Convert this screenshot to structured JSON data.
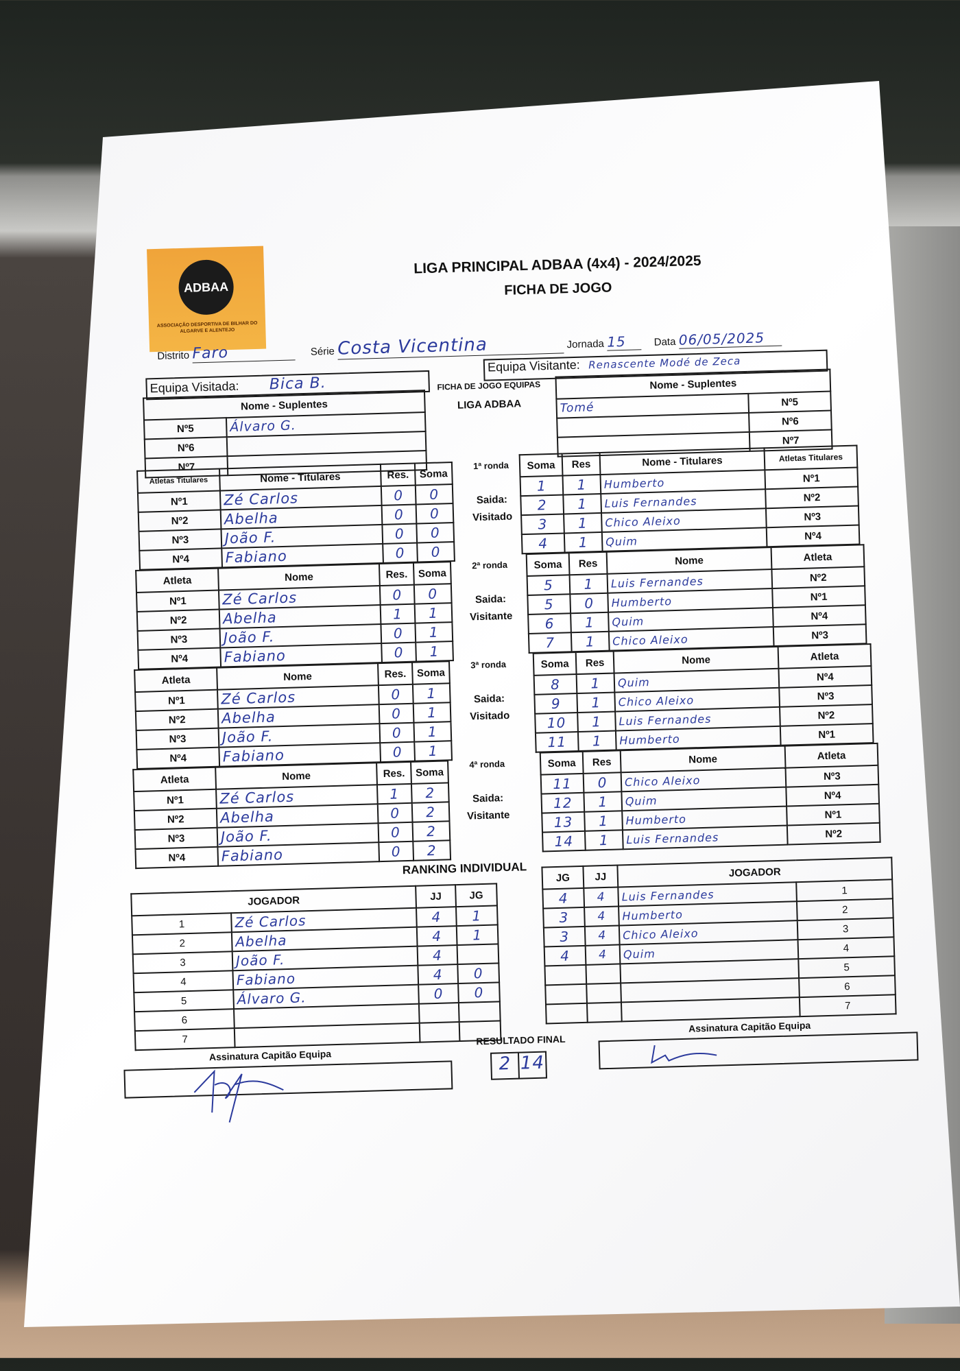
{
  "header": {
    "logo_text": "ADBAA",
    "logo_subtext": "ASSOCIAÇÃO DESPORTIVA DE BILHAR DO ALGARVE E ALENTEJO",
    "title": "LIGA PRINCIPAL ADBAA (4x4) - 2024/2025",
    "subtitle": "FICHA DE JOGO"
  },
  "fields": {
    "distrito_label": "Distrito",
    "distrito": "Faro",
    "serie_label": "Série",
    "serie": "Costa Vicentina",
    "jornada_label": "Jornada",
    "jornada": "15",
    "data_label": "Data",
    "data": "06/05/2025"
  },
  "teams": {
    "visitada_label": "Equipa Visitada:",
    "visitada": "Bica B.",
    "visitante_label": "Equipa Visitante:",
    "visitante": "Renascente Modé de Zeca",
    "center_line1": "FICHA DE JOGO EQUIPAS",
    "center_line2": "LIGA ADBAA"
  },
  "suplentes": {
    "header": "Nome - Suplentes",
    "home": [
      {
        "n": "Nº5",
        "name": "Álvaro G."
      },
      {
        "n": "Nº6",
        "name": ""
      },
      {
        "n": "Nº7",
        "name": ""
      }
    ],
    "away": [
      {
        "n": "Nº5",
        "name": "Tomé"
      },
      {
        "n": "Nº6",
        "name": ""
      },
      {
        "n": "Nº7",
        "name": ""
      }
    ]
  },
  "rounds": [
    {
      "label": "1ª ronda",
      "saida": "Saida:",
      "saida_team": "Visitado",
      "home_headers": [
        "Atletas Titulares",
        "Nome - Titulares",
        "Res.",
        "Soma"
      ],
      "away_headers": [
        "Soma",
        "Res",
        "Nome - Titulares",
        "Atletas Titulares"
      ],
      "home": [
        {
          "n": "Nº1",
          "name": "Zé Carlos",
          "res": "0",
          "soma": "0"
        },
        {
          "n": "Nº2",
          "name": "Abelha",
          "res": "0",
          "soma": "0"
        },
        {
          "n": "Nº3",
          "name": "João F.",
          "res": "0",
          "soma": "0"
        },
        {
          "n": "Nº4",
          "name": "Fabiano",
          "res": "0",
          "soma": "0"
        }
      ],
      "away": [
        {
          "soma": "1",
          "res": "1",
          "name": "Humberto",
          "n": "Nº1"
        },
        {
          "soma": "2",
          "res": "1",
          "name": "Luis Fernandes",
          "n": "Nº2"
        },
        {
          "soma": "3",
          "res": "1",
          "name": "Chico Aleixo",
          "n": "Nº3"
        },
        {
          "soma": "4",
          "res": "1",
          "name": "Quim",
          "n": "Nº4"
        }
      ]
    },
    {
      "label": "2ª ronda",
      "saida": "Saida:",
      "saida_team": "Visitante",
      "home_headers": [
        "Atleta",
        "Nome",
        "Res.",
        "Soma"
      ],
      "away_headers": [
        "Soma",
        "Res",
        "Nome",
        "Atleta"
      ],
      "home": [
        {
          "n": "Nº1",
          "name": "Zé Carlos",
          "res": "0",
          "soma": "0"
        },
        {
          "n": "Nº2",
          "name": "Abelha",
          "res": "1",
          "soma": "1"
        },
        {
          "n": "Nº3",
          "name": "João F.",
          "res": "0",
          "soma": "1"
        },
        {
          "n": "Nº4",
          "name": "Fabiano",
          "res": "0",
          "soma": "1"
        }
      ],
      "away": [
        {
          "soma": "5",
          "res": "1",
          "name": "Luis Fernandes",
          "n": "Nº2"
        },
        {
          "soma": "5",
          "res": "0",
          "name": "Humberto",
          "n": "Nº1"
        },
        {
          "soma": "6",
          "res": "1",
          "name": "Quim",
          "n": "Nº4"
        },
        {
          "soma": "7",
          "res": "1",
          "name": "Chico Aleixo",
          "n": "Nº3"
        }
      ]
    },
    {
      "label": "3ª ronda",
      "saida": "Saida:",
      "saida_team": "Visitado",
      "home_headers": [
        "Atleta",
        "Nome",
        "Res.",
        "Soma"
      ],
      "away_headers": [
        "Soma",
        "Res",
        "Nome",
        "Atleta"
      ],
      "home": [
        {
          "n": "Nº1",
          "name": "Zé Carlos",
          "res": "0",
          "soma": "1"
        },
        {
          "n": "Nº2",
          "name": "Abelha",
          "res": "0",
          "soma": "1"
        },
        {
          "n": "Nº3",
          "name": "João F.",
          "res": "0",
          "soma": "1"
        },
        {
          "n": "Nº4",
          "name": "Fabiano",
          "res": "0",
          "soma": "1"
        }
      ],
      "away": [
        {
          "soma": "8",
          "res": "1",
          "name": "Quim",
          "n": "Nº4"
        },
        {
          "soma": "9",
          "res": "1",
          "name": "Chico Aleixo",
          "n": "Nº3"
        },
        {
          "soma": "10",
          "res": "1",
          "name": "Luis Fernandes",
          "n": "Nº2"
        },
        {
          "soma": "11",
          "res": "1",
          "name": "Humberto",
          "n": "Nº1"
        }
      ]
    },
    {
      "label": "4ª ronda",
      "saida": "Saida:",
      "saida_team": "Visitante",
      "home_headers": [
        "Atleta",
        "Nome",
        "Res.",
        "Soma"
      ],
      "away_headers": [
        "Soma",
        "Res",
        "Nome",
        "Atleta"
      ],
      "home": [
        {
          "n": "Nº1",
          "name": "Zé Carlos",
          "res": "1",
          "soma": "2"
        },
        {
          "n": "Nº2",
          "name": "Abelha",
          "res": "0",
          "soma": "2"
        },
        {
          "n": "Nº3",
          "name": "João F.",
          "res": "0",
          "soma": "2"
        },
        {
          "n": "Nº4",
          "name": "Fabiano",
          "res": "0",
          "soma": "2"
        }
      ],
      "away": [
        {
          "soma": "11",
          "res": "0",
          "name": "Chico Aleixo",
          "n": "Nº3"
        },
        {
          "soma": "12",
          "res": "1",
          "name": "Quim",
          "n": "Nº4"
        },
        {
          "soma": "13",
          "res": "1",
          "name": "Humberto",
          "n": "Nº1"
        },
        {
          "soma": "14",
          "res": "1",
          "name": "Luis Fernandes",
          "n": "Nº2"
        }
      ]
    }
  ],
  "ranking": {
    "title": "RANKING INDIVIDUAL",
    "home_headers": [
      "JOGADOR",
      "JJ",
      "JG"
    ],
    "away_headers": [
      "JG",
      "JJ",
      "JOGADOR"
    ],
    "home": [
      {
        "pos": "1",
        "name": "Zé Carlos",
        "jj": "4",
        "jg": "1"
      },
      {
        "pos": "2",
        "name": "Abelha",
        "jj": "4",
        "jg": "1"
      },
      {
        "pos": "3",
        "name": "João F.",
        "jj": "4",
        "jg": ""
      },
      {
        "pos": "4",
        "name": "Fabiano",
        "jj": "4",
        "jg": "0"
      },
      {
        "pos": "5",
        "name": "Álvaro G.",
        "jj": "0",
        "jg": "0"
      },
      {
        "pos": "6",
        "name": "",
        "jj": "",
        "jg": ""
      },
      {
        "pos": "7",
        "name": "",
        "jj": "",
        "jg": ""
      }
    ],
    "away": [
      {
        "jg": "4",
        "jj": "4",
        "name": "Luis Fernandes",
        "pos": "1"
      },
      {
        "jg": "3",
        "jj": "4",
        "name": "Humberto",
        "pos": "2"
      },
      {
        "jg": "3",
        "jj": "4",
        "name": "Chico Aleixo",
        "pos": "3"
      },
      {
        "jg": "4",
        "jj": "4",
        "name": "Quim",
        "pos": "4"
      },
      {
        "jg": "",
        "jj": "",
        "name": "",
        "pos": "5"
      },
      {
        "jg": "",
        "jj": "",
        "name": "",
        "pos": "6"
      },
      {
        "jg": "",
        "jj": "",
        "name": "",
        "pos": "7"
      }
    ]
  },
  "footer": {
    "signature_label_home": "Assinatura Capitão Equipa",
    "signature_label_away": "Assinatura Capitão Equipa",
    "result_label": "RESULTADO FINAL",
    "result_home": "2",
    "result_away": "14"
  },
  "colors": {
    "ink": "#2b3a9c",
    "logo_orange": "#f0a43a"
  }
}
